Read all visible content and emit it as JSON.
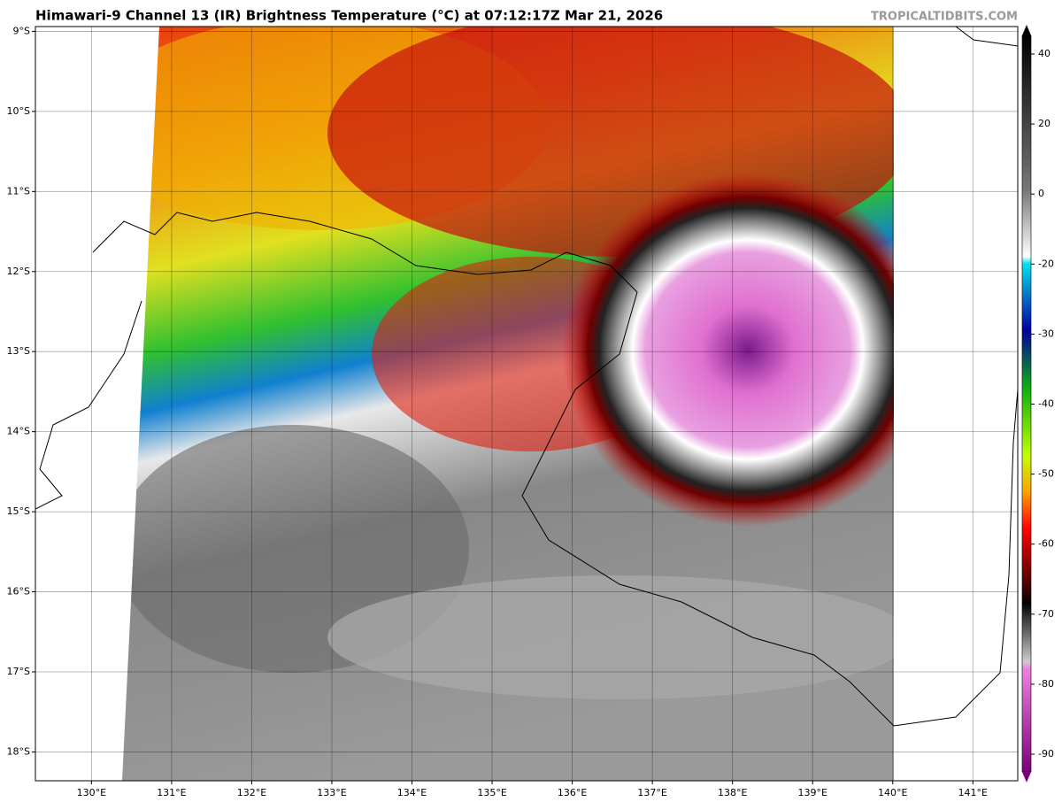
{
  "header": {
    "title": "Himawari-9 Channel 13 (IR) Brightness Temperature (°C) at 07:12:17Z Mar 21, 2026",
    "credit": "TROPICALTIDBITS.COM"
  },
  "map": {
    "xlim": [
      129.3,
      141.56
    ],
    "ylim": [
      -18.36,
      -8.94
    ],
    "xticks": [
      {
        "value": 130,
        "label": "130°E"
      },
      {
        "value": 131,
        "label": "131°E"
      },
      {
        "value": 132,
        "label": "132°E"
      },
      {
        "value": 133,
        "label": "133°E"
      },
      {
        "value": 134,
        "label": "134°E"
      },
      {
        "value": 135,
        "label": "135°E"
      },
      {
        "value": 136,
        "label": "136°E"
      },
      {
        "value": 137,
        "label": "137°E"
      },
      {
        "value": 138,
        "label": "138°E"
      },
      {
        "value": 139,
        "label": "139°E"
      },
      {
        "value": 140,
        "label": "140°E"
      },
      {
        "value": 141,
        "label": "141°E"
      }
    ],
    "yticks": [
      {
        "value": -9,
        "label": "9°S"
      },
      {
        "value": -10,
        "label": "10°S"
      },
      {
        "value": -11,
        "label": "11°S"
      },
      {
        "value": -12,
        "label": "12°S"
      },
      {
        "value": -13,
        "label": "13°S"
      },
      {
        "value": -14,
        "label": "14°S"
      },
      {
        "value": -15,
        "label": "15°S"
      },
      {
        "value": -16,
        "label": "16°S"
      },
      {
        "value": -17,
        "label": "17°S"
      },
      {
        "value": -18,
        "label": "18°S"
      }
    ]
  },
  "colorbar": {
    "ticks": [
      40,
      20,
      0,
      -20,
      -30,
      -40,
      -50,
      -60,
      -70,
      -80,
      -90
    ]
  }
}
